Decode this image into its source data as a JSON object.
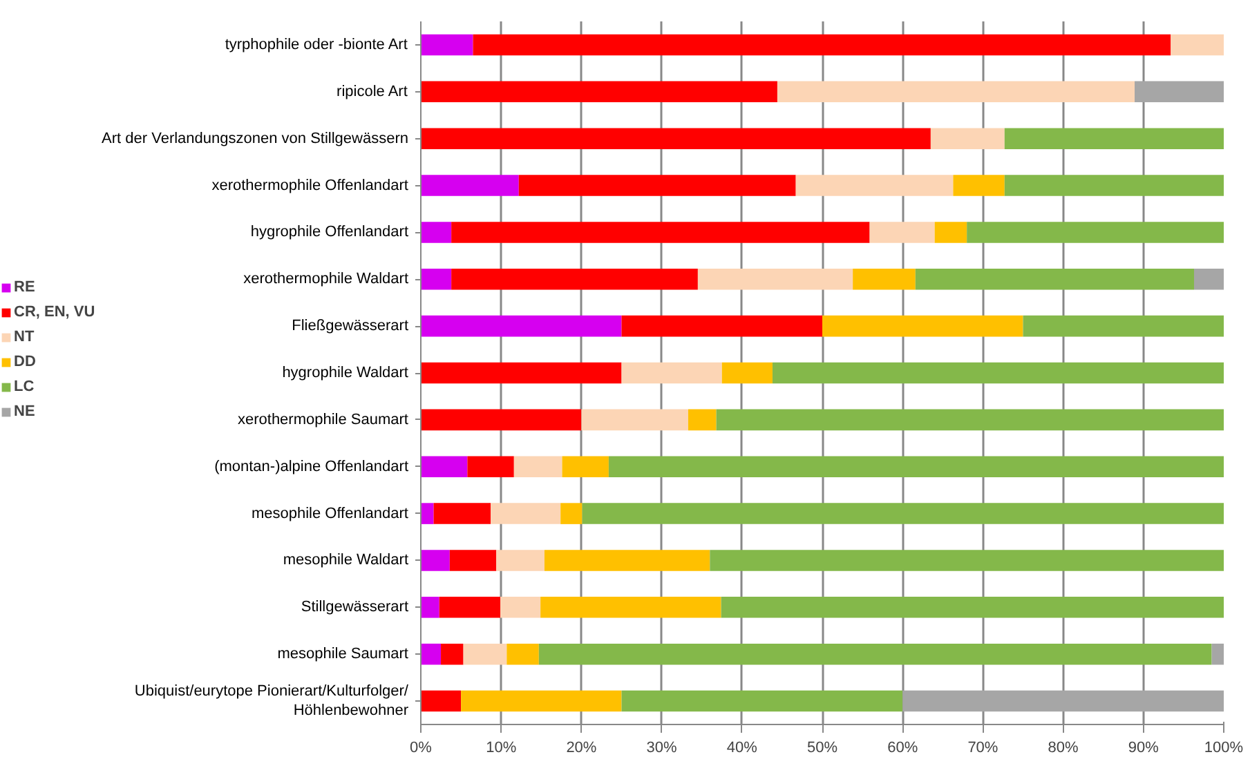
{
  "chart_data": {
    "type": "bar",
    "orientation": "horizontal",
    "stacked": true,
    "categories": [
      "tyrphophile oder -bionte Art",
      "ripicole Art",
      "Art der Verlandungszonen von Stillgewässern",
      "xerothermophile Offenlandart",
      "hygrophile Offenlandart",
      "xerothermophile Waldart",
      "Fließgewässerart",
      "hygrophile Waldart",
      "xerothermophile Saumart",
      "(montan-)alpine Offenlandart",
      "mesophile Offenlandart",
      "mesophile Waldart",
      "Stillgewässerart",
      "mesophile Saumart",
      "Ubiquist/eurytope Pionierart/Kulturfolger/\nHöhlenbewohner"
    ],
    "series": [
      {
        "name": "RE",
        "color": "#d600f0",
        "values": [
          6.5,
          0,
          0,
          12.2,
          3.8,
          3.8,
          25,
          0,
          0,
          5.8,
          1.6,
          3.6,
          2.3,
          2.5,
          0
        ]
      },
      {
        "name": "CR, EN, VU",
        "color": "#ff0000",
        "values": [
          86.9,
          44.4,
          63.5,
          34.5,
          52.1,
          30.7,
          25,
          25,
          20,
          5.8,
          7.1,
          5.8,
          7.6,
          2.8,
          5
        ]
      },
      {
        "name": "NT",
        "color": "#fcd5b5",
        "values": [
          6.6,
          44.5,
          9.2,
          19.6,
          8.1,
          19.3,
          0,
          12.5,
          13.3,
          6.0,
          8.7,
          6.0,
          5.0,
          5.4,
          0
        ]
      },
      {
        "name": "DD",
        "color": "#ffc000",
        "values": [
          0,
          0,
          0,
          6.4,
          4.0,
          7.8,
          25,
          6.3,
          3.5,
          5.8,
          2.7,
          20.6,
          22.5,
          4.0,
          20
        ]
      },
      {
        "name": "LC",
        "color": "#84b84a",
        "values": [
          0,
          0,
          27.3,
          27.3,
          32.0,
          34.7,
          25,
          56.2,
          63.2,
          76.6,
          79.9,
          64.0,
          62.6,
          83.8,
          35
        ]
      },
      {
        "name": "NE",
        "color": "#a6a6a6",
        "values": [
          0,
          11.1,
          0,
          0,
          0,
          3.7,
          0,
          0,
          0,
          0,
          0,
          0,
          0,
          1.5,
          40
        ]
      }
    ],
    "xlim": [
      0,
      100
    ],
    "xticks": [
      {
        "value": 0,
        "label": "0%"
      },
      {
        "value": 10,
        "label": "10%"
      },
      {
        "value": 20,
        "label": "20%"
      },
      {
        "value": 30,
        "label": "30%"
      },
      {
        "value": 40,
        "label": "40%"
      },
      {
        "value": 50,
        "label": "50%"
      },
      {
        "value": 60,
        "label": "60%"
      },
      {
        "value": 70,
        "label": "70%"
      },
      {
        "value": 80,
        "label": "80%"
      },
      {
        "value": 90,
        "label": "90%"
      },
      {
        "value": 100,
        "label": "100%"
      }
    ],
    "grid": "x",
    "legend": "left"
  }
}
